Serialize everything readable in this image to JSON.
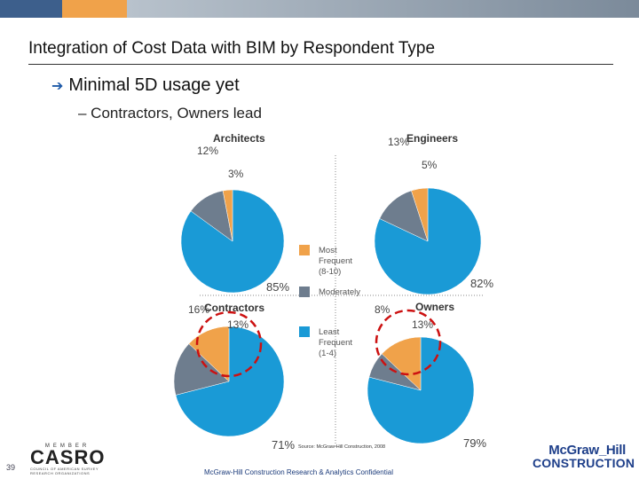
{
  "slide": {
    "title": "Integration of Cost Data with BIM by Respondent Type",
    "bullet": "Minimal 5D usage yet",
    "subbullet": "– Contractors, Owners lead",
    "slide_number": "39",
    "footer": "McGraw-Hill Construction Research & Analytics Confidential",
    "member_small": "MEMBER",
    "member_logo": "CASRO",
    "member_tag": "COUNCIL OF AMERICAN SURVEY RESEARCH ORGANIZATIONS",
    "brand_line1": "McGraw_Hill",
    "brand_line2": "CONSTRUCTION",
    "source_note": "Source: McGraw-Hill Construction, 2008"
  },
  "colors": {
    "bar_dark": "#3d5f8c",
    "bar_orange": "#f0a24a",
    "bar_gray": "#b8c2cc",
    "bar_gray2": "#7b8a9a",
    "most": "#f0a24a",
    "moderately": "#6e7d8e",
    "least": "#1a9ad6",
    "highlight": "#cc1111"
  },
  "chart_data": {
    "type": "pie",
    "legend": [
      {
        "key": "most",
        "label_lines": [
          "Most",
          "Frequent",
          "(8-10)"
        ]
      },
      {
        "key": "moderately",
        "label_lines": [
          "Moderately"
        ]
      },
      {
        "key": "least",
        "label_lines": [
          "Least",
          "Frequent",
          "(1-4)"
        ]
      }
    ],
    "pies": [
      {
        "name": "Architects",
        "values": {
          "most": 3,
          "moderately": 12,
          "least": 85
        },
        "labels": {
          "most": "3%",
          "moderately": "12%",
          "least": "85%"
        },
        "highlighted": false
      },
      {
        "name": "Engineers",
        "values": {
          "most": 5,
          "moderately": 13,
          "least": 82
        },
        "labels": {
          "most": "5%",
          "moderately": "13%",
          "least": "82%"
        },
        "highlighted": false
      },
      {
        "name": "Contractors",
        "values": {
          "most": 13,
          "moderately": 16,
          "least": 71
        },
        "labels": {
          "most": "13%",
          "moderately": "16%",
          "least": "71%"
        },
        "highlighted": true
      },
      {
        "name": "Owners",
        "values": {
          "most": 13,
          "moderately": 8,
          "least": 79
        },
        "labels": {
          "most": "13%",
          "moderately": "8%",
          "least": "79%"
        },
        "highlighted": true
      }
    ]
  }
}
